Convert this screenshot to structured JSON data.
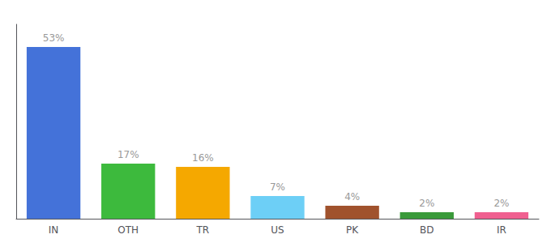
{
  "chart_data": {
    "type": "bar",
    "categories": [
      "IN",
      "OTH",
      "TR",
      "US",
      "PK",
      "BD",
      "IR"
    ],
    "values": [
      53,
      17,
      16,
      7,
      4,
      2,
      2
    ],
    "value_labels": [
      "53%",
      "17%",
      "16%",
      "7%",
      "4%",
      "2%",
      "2%"
    ],
    "data_labels": true,
    "colors": [
      "#4472d9",
      "#3dba3d",
      "#f5a800",
      "#6dcff6",
      "#a0522d",
      "#3a9a3a",
      "#f06090"
    ],
    "ylim": [
      0,
      60
    ],
    "tick_labels": "x",
    "grid": false
  }
}
